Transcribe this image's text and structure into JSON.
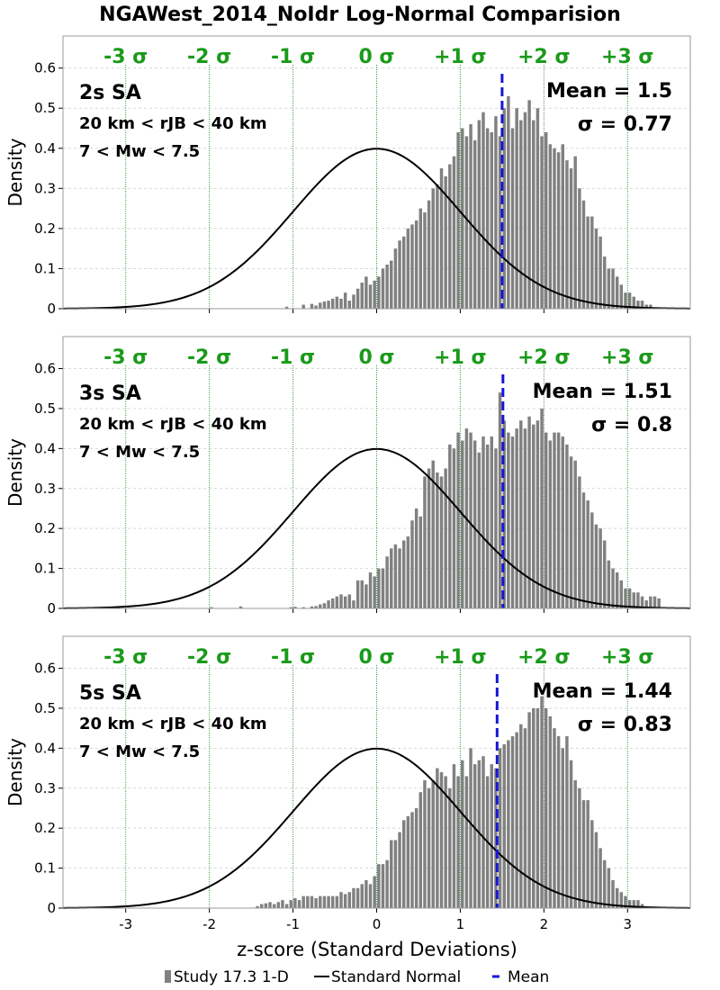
{
  "figure": {
    "title": "NGAWest_2014_NoIdr Log-Normal Comparision",
    "xlabel": "z-score (Standard Deviations)"
  },
  "legend": {
    "items": [
      {
        "label": "Study 17.3 1-D",
        "color": "#808080"
      },
      {
        "label": "Standard Normal",
        "color": "#000000"
      },
      {
        "label": "Mean",
        "color": "#1515d6"
      }
    ]
  },
  "colors": {
    "histogram": "#808080",
    "normal_curve": "#000000",
    "mean_line": "#1515d6",
    "sigma_lines": "#2e8b2e",
    "sigma_labels": "#1a9a1a"
  },
  "chart_data": [
    {
      "type": "bar",
      "title": "",
      "ylabel": "Density",
      "xlim": [
        -3.75,
        3.75
      ],
      "ylim": [
        0,
        0.68
      ],
      "yticks": [
        "0",
        "0.1",
        "0.2",
        "0.3",
        "0.4",
        "0.5",
        "0.6"
      ],
      "xticks": [],
      "grid": "horizontal dashed",
      "sigma_lines": [
        -3,
        -2,
        -1,
        0,
        1,
        2,
        3
      ],
      "sigma_labels": [
        "-3 σ",
        "-2 σ",
        "-1 σ",
        "0 σ",
        "+1 σ",
        "+2 σ",
        "+3 σ"
      ],
      "annotations": {
        "period": "2s SA",
        "distance": "20 km < rJB < 40 km",
        "magnitude": "7 < Mw < 7.5",
        "mean_text": "Mean = 1.5",
        "sigma_text": "σ = 0.77"
      },
      "mean": 1.5,
      "bin_width": 0.05,
      "bins": [
        [
          -1.1,
          0.005
        ],
        [
          -0.9,
          0.01
        ],
        [
          -0.8,
          0.012
        ],
        [
          -0.75,
          0.008
        ],
        [
          -0.7,
          0.015
        ],
        [
          -0.65,
          0.018
        ],
        [
          -0.6,
          0.02
        ],
        [
          -0.55,
          0.025
        ],
        [
          -0.5,
          0.03
        ],
        [
          -0.45,
          0.025
        ],
        [
          -0.4,
          0.04
        ],
        [
          -0.35,
          0.02
        ],
        [
          -0.3,
          0.035
        ],
        [
          -0.25,
          0.05
        ],
        [
          -0.2,
          0.065
        ],
        [
          -0.15,
          0.08
        ],
        [
          -0.1,
          0.06
        ],
        [
          -0.05,
          0.07
        ],
        [
          0.0,
          0.08
        ],
        [
          0.05,
          0.1
        ],
        [
          0.1,
          0.11
        ],
        [
          0.15,
          0.12
        ],
        [
          0.2,
          0.15
        ],
        [
          0.25,
          0.17
        ],
        [
          0.3,
          0.18
        ],
        [
          0.35,
          0.2
        ],
        [
          0.4,
          0.21
        ],
        [
          0.45,
          0.22
        ],
        [
          0.5,
          0.25
        ],
        [
          0.55,
          0.24
        ],
        [
          0.6,
          0.27
        ],
        [
          0.65,
          0.3
        ],
        [
          0.7,
          0.31
        ],
        [
          0.75,
          0.35
        ],
        [
          0.8,
          0.33
        ],
        [
          0.85,
          0.36
        ],
        [
          0.9,
          0.38
        ],
        [
          0.95,
          0.44
        ],
        [
          1.0,
          0.45
        ],
        [
          1.05,
          0.43
        ],
        [
          1.1,
          0.46
        ],
        [
          1.15,
          0.42
        ],
        [
          1.2,
          0.47
        ],
        [
          1.25,
          0.49
        ],
        [
          1.3,
          0.45
        ],
        [
          1.35,
          0.44
        ],
        [
          1.4,
          0.48
        ],
        [
          1.45,
          0.43
        ],
        [
          1.5,
          0.5
        ],
        [
          1.55,
          0.53
        ],
        [
          1.6,
          0.45
        ],
        [
          1.65,
          0.5
        ],
        [
          1.7,
          0.47
        ],
        [
          1.75,
          0.49
        ],
        [
          1.8,
          0.52
        ],
        [
          1.85,
          0.47
        ],
        [
          1.9,
          0.5
        ],
        [
          1.95,
          0.43
        ],
        [
          2.0,
          0.44
        ],
        [
          2.05,
          0.41
        ],
        [
          2.1,
          0.4
        ],
        [
          2.15,
          0.39
        ],
        [
          2.2,
          0.41
        ],
        [
          2.25,
          0.37
        ],
        [
          2.3,
          0.35
        ],
        [
          2.35,
          0.38
        ],
        [
          2.4,
          0.3
        ],
        [
          2.45,
          0.27
        ],
        [
          2.5,
          0.23
        ],
        [
          2.55,
          0.23
        ],
        [
          2.6,
          0.2
        ],
        [
          2.65,
          0.18
        ],
        [
          2.7,
          0.13
        ],
        [
          2.75,
          0.1
        ],
        [
          2.8,
          0.1
        ],
        [
          2.85,
          0.08
        ],
        [
          2.9,
          0.06
        ],
        [
          2.95,
          0.04
        ],
        [
          3.0,
          0.04
        ],
        [
          3.05,
          0.03
        ],
        [
          3.1,
          0.02
        ],
        [
          3.15,
          0.02
        ],
        [
          3.2,
          0.01
        ],
        [
          3.25,
          0.01
        ]
      ]
    },
    {
      "type": "bar",
      "title": "",
      "ylabel": "Density",
      "xlim": [
        -3.75,
        3.75
      ],
      "ylim": [
        0,
        0.68
      ],
      "yticks": [
        "0",
        "0.1",
        "0.2",
        "0.3",
        "0.4",
        "0.5",
        "0.6"
      ],
      "xticks": [],
      "grid": "horizontal dashed",
      "sigma_lines": [
        -3,
        -2,
        -1,
        0,
        1,
        2,
        3
      ],
      "sigma_labels": [
        "-3 σ",
        "-2 σ",
        "-1 σ",
        "0 σ",
        "+1 σ",
        "+2 σ",
        "+3 σ"
      ],
      "annotations": {
        "period": "3s SA",
        "distance": "20 km < rJB < 40 km",
        "magnitude": "7 < Mw < 7.5",
        "mean_text": "Mean = 1.51",
        "sigma_text": "σ = 0.8"
      },
      "mean": 1.51,
      "bin_width": 0.05,
      "bins": [
        [
          -2.0,
          0.003
        ],
        [
          -1.65,
          0.005
        ],
        [
          -1.05,
          0.003
        ],
        [
          -1.0,
          0.004
        ],
        [
          -0.9,
          0.003
        ],
        [
          -0.8,
          0.005
        ],
        [
          -0.75,
          0.006
        ],
        [
          -0.7,
          0.01
        ],
        [
          -0.65,
          0.013
        ],
        [
          -0.6,
          0.02
        ],
        [
          -0.55,
          0.025
        ],
        [
          -0.5,
          0.03
        ],
        [
          -0.45,
          0.035
        ],
        [
          -0.4,
          0.03
        ],
        [
          -0.35,
          0.035
        ],
        [
          -0.3,
          0.02
        ],
        [
          -0.25,
          0.07
        ],
        [
          -0.2,
          0.07
        ],
        [
          -0.15,
          0.06
        ],
        [
          -0.1,
          0.09
        ],
        [
          -0.05,
          0.08
        ],
        [
          0.0,
          0.1
        ],
        [
          0.05,
          0.1
        ],
        [
          0.1,
          0.13
        ],
        [
          0.15,
          0.15
        ],
        [
          0.2,
          0.16
        ],
        [
          0.25,
          0.15
        ],
        [
          0.3,
          0.17
        ],
        [
          0.35,
          0.18
        ],
        [
          0.4,
          0.22
        ],
        [
          0.45,
          0.25
        ],
        [
          0.5,
          0.23
        ],
        [
          0.55,
          0.33
        ],
        [
          0.6,
          0.35
        ],
        [
          0.65,
          0.37
        ],
        [
          0.7,
          0.34
        ],
        [
          0.75,
          0.33
        ],
        [
          0.8,
          0.35
        ],
        [
          0.85,
          0.41
        ],
        [
          0.9,
          0.4
        ],
        [
          0.95,
          0.44
        ],
        [
          1.0,
          0.42
        ],
        [
          1.05,
          0.45
        ],
        [
          1.1,
          0.44
        ],
        [
          1.15,
          0.42
        ],
        [
          1.2,
          0.39
        ],
        [
          1.25,
          0.43
        ],
        [
          1.3,
          0.41
        ],
        [
          1.35,
          0.43
        ],
        [
          1.4,
          0.4
        ],
        [
          1.45,
          0.54
        ],
        [
          1.5,
          0.47
        ],
        [
          1.55,
          0.44
        ],
        [
          1.6,
          0.43
        ],
        [
          1.65,
          0.45
        ],
        [
          1.7,
          0.47
        ],
        [
          1.75,
          0.45
        ],
        [
          1.8,
          0.48
        ],
        [
          1.85,
          0.46
        ],
        [
          1.9,
          0.47
        ],
        [
          1.95,
          0.5
        ],
        [
          2.0,
          0.44
        ],
        [
          2.05,
          0.42
        ],
        [
          2.1,
          0.44
        ],
        [
          2.15,
          0.44
        ],
        [
          2.2,
          0.43
        ],
        [
          2.25,
          0.41
        ],
        [
          2.3,
          0.38
        ],
        [
          2.35,
          0.37
        ],
        [
          2.4,
          0.33
        ],
        [
          2.45,
          0.29
        ],
        [
          2.5,
          0.27
        ],
        [
          2.55,
          0.24
        ],
        [
          2.6,
          0.21
        ],
        [
          2.65,
          0.2
        ],
        [
          2.7,
          0.17
        ],
        [
          2.75,
          0.12
        ],
        [
          2.8,
          0.1
        ],
        [
          2.85,
          0.09
        ],
        [
          2.9,
          0.07
        ],
        [
          2.95,
          0.05
        ],
        [
          3.0,
          0.05
        ],
        [
          3.05,
          0.04
        ],
        [
          3.1,
          0.04
        ],
        [
          3.15,
          0.03
        ],
        [
          3.2,
          0.02
        ],
        [
          3.25,
          0.03
        ],
        [
          3.3,
          0.03
        ],
        [
          3.35,
          0.025
        ]
      ]
    },
    {
      "type": "bar",
      "title": "",
      "ylabel": "Density",
      "xlim": [
        -3.75,
        3.75
      ],
      "ylim": [
        0,
        0.68
      ],
      "yticks": [
        "0",
        "0.1",
        "0.2",
        "0.3",
        "0.4",
        "0.5",
        "0.6"
      ],
      "xticks": [
        "-3",
        "-2",
        "-1",
        "0",
        "1",
        "2",
        "3"
      ],
      "grid": "horizontal dashed",
      "sigma_lines": [
        -3,
        -2,
        -1,
        0,
        1,
        2,
        3
      ],
      "sigma_labels": [
        "-3 σ",
        "-2 σ",
        "-1 σ",
        "0 σ",
        "+1 σ",
        "+2 σ",
        "+3 σ"
      ],
      "annotations": {
        "period": "5s SA",
        "distance": "20 km < rJB < 40 km",
        "magnitude": "7 < Mw < 7.5",
        "mean_text": "Mean = 1.44",
        "sigma_text": "σ = 0.83"
      },
      "mean": 1.44,
      "bin_width": 0.05,
      "bins": [
        [
          -1.45,
          0.005
        ],
        [
          -1.4,
          0.01
        ],
        [
          -1.35,
          0.012
        ],
        [
          -1.3,
          0.015
        ],
        [
          -1.25,
          0.01
        ],
        [
          -1.2,
          0.015
        ],
        [
          -1.15,
          0.02
        ],
        [
          -1.1,
          0.01
        ],
        [
          -1.05,
          0.02
        ],
        [
          -1.0,
          0.025
        ],
        [
          -0.95,
          0.02
        ],
        [
          -0.9,
          0.03
        ],
        [
          -0.85,
          0.03
        ],
        [
          -0.8,
          0.03
        ],
        [
          -0.75,
          0.025
        ],
        [
          -0.7,
          0.03
        ],
        [
          -0.65,
          0.03
        ],
        [
          -0.6,
          0.03
        ],
        [
          -0.55,
          0.03
        ],
        [
          -0.5,
          0.03
        ],
        [
          -0.45,
          0.04
        ],
        [
          -0.4,
          0.035
        ],
        [
          -0.35,
          0.04
        ],
        [
          -0.3,
          0.05
        ],
        [
          -0.25,
          0.05
        ],
        [
          -0.2,
          0.06
        ],
        [
          -0.15,
          0.07
        ],
        [
          -0.1,
          0.06
        ],
        [
          -0.05,
          0.08
        ],
        [
          0.0,
          0.11
        ],
        [
          0.05,
          0.11
        ],
        [
          0.1,
          0.12
        ],
        [
          0.15,
          0.17
        ],
        [
          0.2,
          0.17
        ],
        [
          0.25,
          0.19
        ],
        [
          0.3,
          0.22
        ],
        [
          0.35,
          0.23
        ],
        [
          0.4,
          0.24
        ],
        [
          0.45,
          0.25
        ],
        [
          0.5,
          0.29
        ],
        [
          0.55,
          0.32
        ],
        [
          0.6,
          0.3
        ],
        [
          0.65,
          0.32
        ],
        [
          0.7,
          0.35
        ],
        [
          0.75,
          0.34
        ],
        [
          0.8,
          0.33
        ],
        [
          0.85,
          0.3
        ],
        [
          0.9,
          0.36
        ],
        [
          0.95,
          0.33
        ],
        [
          1.0,
          0.37
        ],
        [
          1.05,
          0.33
        ],
        [
          1.1,
          0.4
        ],
        [
          1.15,
          0.36
        ],
        [
          1.2,
          0.37
        ],
        [
          1.25,
          0.38
        ],
        [
          1.3,
          0.33
        ],
        [
          1.35,
          0.36
        ],
        [
          1.4,
          0.35
        ],
        [
          1.45,
          0.4
        ],
        [
          1.5,
          0.41
        ],
        [
          1.55,
          0.42
        ],
        [
          1.6,
          0.43
        ],
        [
          1.65,
          0.44
        ],
        [
          1.7,
          0.46
        ],
        [
          1.75,
          0.45
        ],
        [
          1.8,
          0.49
        ],
        [
          1.85,
          0.5
        ],
        [
          1.9,
          0.5
        ],
        [
          1.95,
          0.53
        ],
        [
          2.0,
          0.5
        ],
        [
          2.05,
          0.48
        ],
        [
          2.1,
          0.45
        ],
        [
          2.15,
          0.43
        ],
        [
          2.2,
          0.4
        ],
        [
          2.25,
          0.43
        ],
        [
          2.3,
          0.37
        ],
        [
          2.35,
          0.32
        ],
        [
          2.4,
          0.3
        ],
        [
          2.45,
          0.27
        ],
        [
          2.5,
          0.27
        ],
        [
          2.55,
          0.22
        ],
        [
          2.6,
          0.19
        ],
        [
          2.65,
          0.15
        ],
        [
          2.7,
          0.12
        ],
        [
          2.75,
          0.1
        ],
        [
          2.8,
          0.07
        ],
        [
          2.85,
          0.05
        ],
        [
          2.9,
          0.04
        ],
        [
          2.95,
          0.03
        ],
        [
          3.0,
          0.02
        ],
        [
          3.05,
          0.02
        ],
        [
          3.1,
          0.02
        ],
        [
          3.15,
          0.01
        ]
      ]
    }
  ]
}
